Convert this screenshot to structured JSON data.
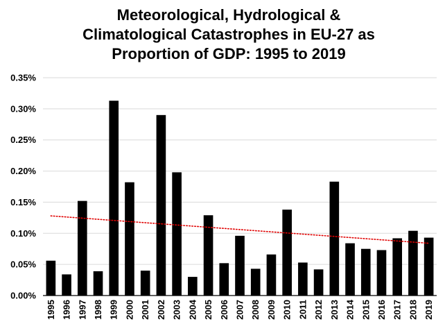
{
  "chart_data": {
    "type": "bar",
    "title_lines": [
      "Meteorological, Hydrological &",
      "Climatological Catastrophes in EU-27 as",
      "Proportion of GDP: 1995 to 2019"
    ],
    "categories": [
      "1995",
      "1996",
      "1997",
      "1998",
      "1999",
      "2000",
      "2001",
      "2002",
      "2003",
      "2004",
      "2005",
      "2006",
      "2007",
      "2008",
      "2009",
      "2010",
      "2011",
      "2012",
      "2013",
      "2014",
      "2015",
      "2016",
      "2017",
      "2018",
      "2019"
    ],
    "values": [
      0.00056,
      0.00034,
      0.00152,
      0.00039,
      0.00313,
      0.00182,
      0.0004,
      0.0029,
      0.00198,
      0.0003,
      0.00129,
      0.00052,
      0.00096,
      0.00043,
      0.00066,
      0.00138,
      0.00053,
      0.00042,
      0.00183,
      0.00084,
      0.00075,
      0.00073,
      0.00092,
      0.00104,
      0.00093
    ],
    "ylim": [
      0,
      0.0035
    ],
    "yticks": [
      0,
      0.0005,
      0.001,
      0.0015,
      0.002,
      0.0025,
      0.003,
      0.0035
    ],
    "ytick_labels": [
      "0.00%",
      "0.05%",
      "0.10%",
      "0.15%",
      "0.20%",
      "0.25%",
      "0.30%",
      "0.35%"
    ],
    "xlabel": "",
    "ylabel": "",
    "grid": true,
    "trendline": {
      "type": "linear",
      "start": 0.00128,
      "end": 0.00084,
      "color": "#e00000",
      "style": "dotted"
    },
    "bar_color": "#000000",
    "grid_color": "#d9d9d9"
  }
}
